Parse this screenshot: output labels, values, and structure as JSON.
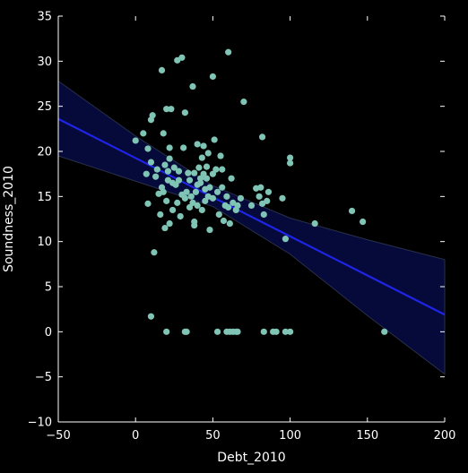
{
  "chart_data": {
    "type": "scatter",
    "xlabel": "Debt_2010",
    "ylabel": "Soundness_2010",
    "xlim": [
      -50,
      200
    ],
    "ylim": [
      -10,
      35
    ],
    "xticks": [
      -50,
      0,
      50,
      100,
      150,
      200
    ],
    "yticks": [
      -10,
      -5,
      0,
      5,
      10,
      15,
      20,
      25,
      30,
      35
    ],
    "grid": false,
    "legend": "none",
    "colors": {
      "background": "#000000",
      "points": "#7fc4b4",
      "regression_line": "#1f24e6",
      "confidence_band": "#050a3a",
      "axes": "#ffffff"
    },
    "series": [
      {
        "values": [
          [
            0,
            21.2
          ],
          [
            5,
            22.0
          ],
          [
            7,
            17.5
          ],
          [
            8,
            20.3
          ],
          [
            8,
            14.2
          ],
          [
            10,
            18.8
          ],
          [
            10,
            23.5
          ],
          [
            11,
            24.0
          ],
          [
            12,
            8.8
          ],
          [
            13,
            17.2
          ],
          [
            14,
            18.0
          ],
          [
            15,
            15.3
          ],
          [
            16,
            13.0
          ],
          [
            17,
            16.0
          ],
          [
            17,
            29.0
          ],
          [
            18,
            22.0
          ],
          [
            18,
            15.5
          ],
          [
            19,
            18.5
          ],
          [
            19,
            11.5
          ],
          [
            20,
            24.7
          ],
          [
            20,
            14.5
          ],
          [
            21,
            16.8
          ],
          [
            21,
            17.8
          ],
          [
            22,
            19.2
          ],
          [
            22,
            20.4
          ],
          [
            22,
            12.0
          ],
          [
            23,
            24.7
          ],
          [
            24,
            13.5
          ],
          [
            24,
            16.5
          ],
          [
            25,
            18.2
          ],
          [
            26,
            16.3
          ],
          [
            27,
            14.3
          ],
          [
            27,
            30.1
          ],
          [
            28,
            17.8
          ],
          [
            28,
            16.8
          ],
          [
            29,
            12.8
          ],
          [
            30,
            30.4
          ],
          [
            30,
            15.2
          ],
          [
            31,
            20.4
          ],
          [
            32,
            24.3
          ],
          [
            32,
            14.8
          ],
          [
            33,
            15.5
          ],
          [
            34,
            17.6
          ],
          [
            35,
            16.8
          ],
          [
            35,
            13.8
          ],
          [
            36,
            15.0
          ],
          [
            37,
            14.3
          ],
          [
            37,
            27.2
          ],
          [
            38,
            17.6
          ],
          [
            38,
            12.2
          ],
          [
            38,
            11.8
          ],
          [
            39,
            15.5
          ],
          [
            40,
            16.3
          ],
          [
            40,
            14.0
          ],
          [
            40,
            20.8
          ],
          [
            41,
            18.2
          ],
          [
            42,
            17.0
          ],
          [
            42,
            16.5
          ],
          [
            43,
            19.3
          ],
          [
            43,
            13.5
          ],
          [
            44,
            17.5
          ],
          [
            44,
            20.6
          ],
          [
            45,
            15.8
          ],
          [
            45,
            14.5
          ],
          [
            46,
            17.0
          ],
          [
            46,
            18.3
          ],
          [
            47,
            15.0
          ],
          [
            47,
            19.8
          ],
          [
            48,
            11.3
          ],
          [
            48,
            16.0
          ],
          [
            50,
            28.3
          ],
          [
            50,
            17.5
          ],
          [
            50,
            14.8
          ],
          [
            51,
            21.3
          ],
          [
            52,
            18.0
          ],
          [
            53,
            15.5
          ],
          [
            54,
            13.0
          ],
          [
            55,
            19.5
          ],
          [
            56,
            18.0
          ],
          [
            56,
            16.0
          ],
          [
            57,
            12.3
          ],
          [
            58,
            14.0
          ],
          [
            59,
            15.0
          ],
          [
            60,
            31.0
          ],
          [
            60,
            13.8
          ],
          [
            61,
            12.0
          ],
          [
            62,
            17.0
          ],
          [
            63,
            14.3
          ],
          [
            65,
            13.5
          ],
          [
            66,
            14.0
          ],
          [
            68,
            14.8
          ],
          [
            70,
            25.5
          ],
          [
            75,
            14.0
          ],
          [
            78,
            15.9
          ],
          [
            80,
            15.0
          ],
          [
            81,
            16.0
          ],
          [
            82,
            21.6
          ],
          [
            82,
            14.2
          ],
          [
            83,
            13.0
          ],
          [
            85,
            14.5
          ],
          [
            86,
            15.5
          ],
          [
            95,
            14.8
          ],
          [
            97,
            10.3
          ],
          [
            100,
            19.3
          ],
          [
            100,
            18.7
          ],
          [
            116,
            12.0
          ],
          [
            140,
            13.4
          ],
          [
            147,
            12.2
          ],
          [
            10,
            1.7
          ],
          [
            20,
            0
          ],
          [
            32,
            0
          ],
          [
            33,
            0
          ],
          [
            53,
            0
          ],
          [
            59,
            0
          ],
          [
            61,
            0
          ],
          [
            63,
            0
          ],
          [
            65,
            0
          ],
          [
            66,
            0
          ],
          [
            83,
            0
          ],
          [
            89,
            0
          ],
          [
            91,
            0
          ],
          [
            97,
            0
          ],
          [
            100,
            0
          ],
          [
            161,
            0
          ]
        ]
      }
    ],
    "regression": {
      "x": [
        -50,
        200
      ],
      "y": [
        23.6,
        1.9
      ]
    },
    "confidence_band": {
      "x": [
        -50,
        0,
        50,
        100,
        150,
        200
      ],
      "upper": [
        27.8,
        21.7,
        16.2,
        12.6,
        10.2,
        8.0
      ],
      "lower": [
        19.5,
        16.7,
        13.9,
        8.6,
        1.8,
        -4.7
      ]
    }
  }
}
